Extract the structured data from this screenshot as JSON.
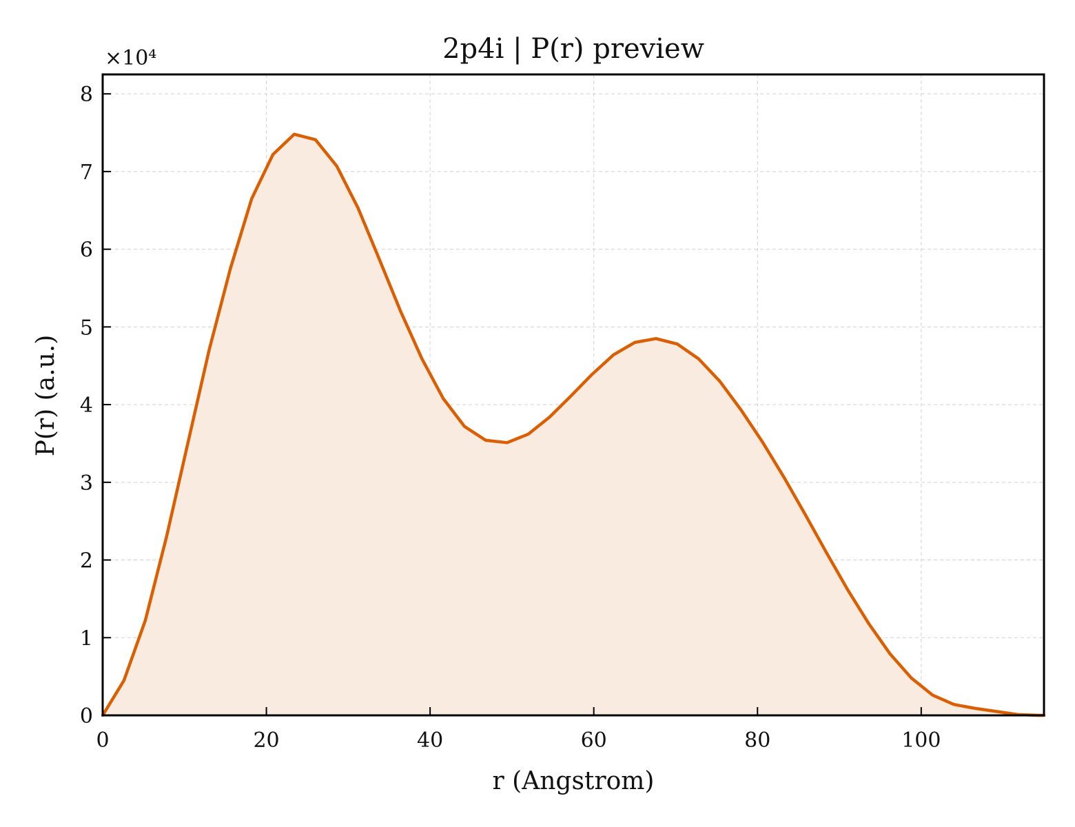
{
  "chart_data": {
    "type": "area",
    "title": "2p4i | P(r) preview",
    "xlabel": "r (Angstrom)",
    "ylabel": "P(r) (a.u.)",
    "y_multiplier_label": "×10⁴",
    "xlim": [
      0,
      115
    ],
    "ylim": [
      0,
      8.25
    ],
    "xticks": [
      0,
      20,
      40,
      60,
      80,
      100
    ],
    "yticks": [
      0,
      1,
      2,
      3,
      4,
      5,
      6,
      7,
      8
    ],
    "grid": true,
    "line_color": "#d95f02",
    "fill_color": "#f9ebe0",
    "series": [
      {
        "x": [
          0,
          2.6,
          5.2,
          7.8,
          10.4,
          13.0,
          15.6,
          18.2,
          20.8,
          23.4,
          26.0,
          28.6,
          31.2,
          33.8,
          36.4,
          39.0,
          41.6,
          44.2,
          46.8,
          49.4,
          52.0,
          54.6,
          57.2,
          59.8,
          62.4,
          65.0,
          67.6,
          70.2,
          72.8,
          75.4,
          78.0,
          80.6,
          83.2,
          85.8,
          88.4,
          91.0,
          93.6,
          96.2,
          98.8,
          101.4,
          104.0,
          106.6,
          109.2,
          111.8,
          114.4
        ],
        "y": [
          0.0,
          0.45,
          1.22,
          2.3,
          3.5,
          4.7,
          5.75,
          6.65,
          7.22,
          7.48,
          7.41,
          7.07,
          6.53,
          5.87,
          5.2,
          4.59,
          4.08,
          3.72,
          3.54,
          3.51,
          3.62,
          3.84,
          4.11,
          4.39,
          4.64,
          4.8,
          4.85,
          4.78,
          4.59,
          4.3,
          3.93,
          3.52,
          3.07,
          2.59,
          2.1,
          1.62,
          1.18,
          0.79,
          0.48,
          0.26,
          0.14,
          0.09,
          0.05,
          0.01,
          0.0
        ]
      }
    ]
  }
}
